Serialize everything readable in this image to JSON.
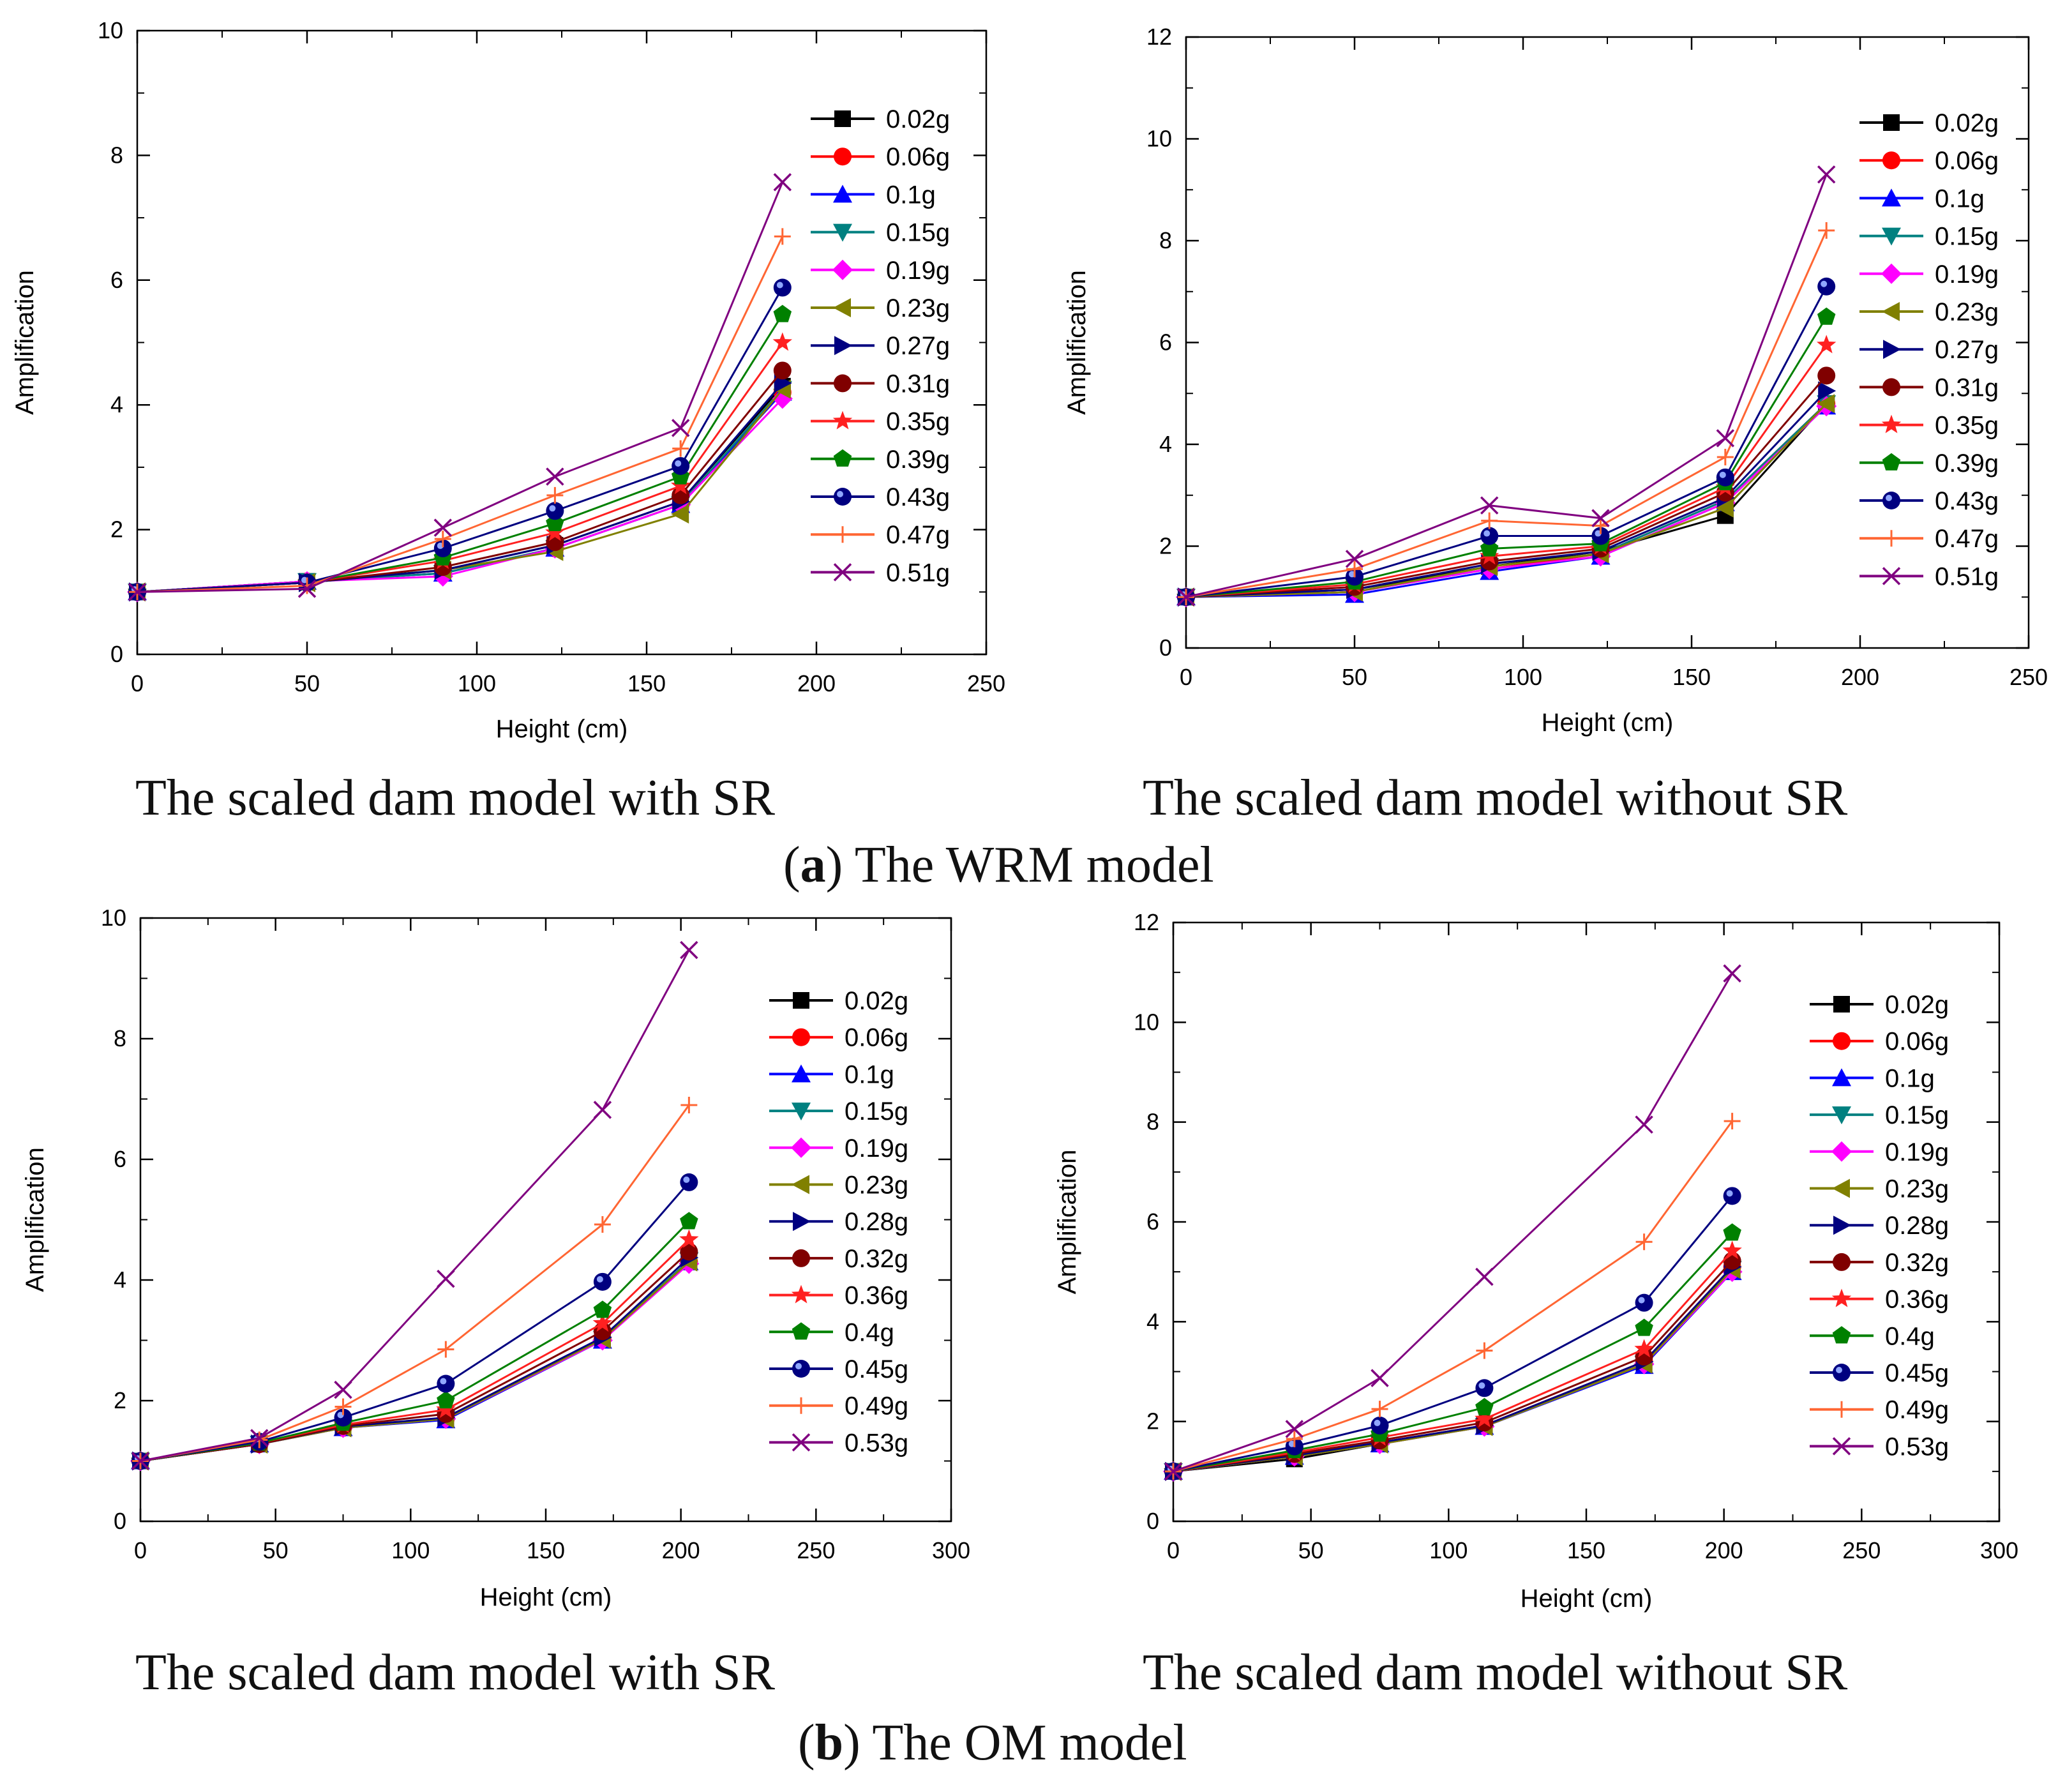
{
  "groups": [
    {
      "letter": "a",
      "open": "(",
      "close": ")",
      "text": " The WRM model"
    },
    {
      "letter": "b",
      "open": "(",
      "close": ")",
      "text": " The OM model"
    }
  ],
  "captions": {
    "a_left": "The scaled dam model with SR",
    "a_right": "The scaled dam model without SR",
    "b_left": "The scaled dam model with SR",
    "b_right": "The scaled dam model without SR"
  },
  "series_colors": [
    "#000000",
    "#ff0000",
    "#0000ff",
    "#008080",
    "#ff00ff",
    "#808000",
    "#000080",
    "#800000",
    "#ff2020",
    "#008000",
    "#000080",
    "#ff6633",
    "#800080"
  ],
  "series_markers": [
    "square",
    "circle",
    "triangle-up",
    "triangle-down",
    "diamond",
    "triangle-left",
    "triangle-right",
    "circle",
    "star",
    "pentagon",
    "circle-bicolor",
    "plus",
    "cross"
  ],
  "chart_data": [
    {
      "id": "a_left",
      "type": "line",
      "title": "",
      "xlabel": "Height (cm)",
      "ylabel": "Amplification",
      "xlim": [
        0,
        250
      ],
      "ylim": [
        0,
        10
      ],
      "xticks": [
        0,
        50,
        100,
        150,
        200,
        250
      ],
      "yticks": [
        0,
        2,
        4,
        6,
        8,
        10
      ],
      "legend_position": "right",
      "x": [
        0,
        50,
        90,
        123,
        160,
        190
      ],
      "series": [
        {
          "name": "0.02g",
          "values": [
            1.0,
            1.17,
            1.35,
            1.75,
            2.45,
            4.3
          ]
        },
        {
          "name": "0.06g",
          "values": [
            1.0,
            1.17,
            1.3,
            1.7,
            2.4,
            4.2
          ]
        },
        {
          "name": "0.1g",
          "values": [
            1.0,
            1.17,
            1.3,
            1.7,
            2.4,
            4.2
          ]
        },
        {
          "name": "0.15g",
          "values": [
            1.0,
            1.17,
            1.3,
            1.7,
            2.4,
            4.25
          ]
        },
        {
          "name": "0.19g",
          "values": [
            1.0,
            1.17,
            1.25,
            1.7,
            2.4,
            4.1
          ]
        },
        {
          "name": "0.23g",
          "values": [
            1.0,
            1.15,
            1.35,
            1.65,
            2.25,
            4.25
          ]
        },
        {
          "name": "0.27g",
          "values": [
            1.0,
            1.15,
            1.35,
            1.75,
            2.45,
            4.35
          ]
        },
        {
          "name": "0.31g",
          "values": [
            1.0,
            1.15,
            1.4,
            1.8,
            2.55,
            4.55
          ]
        },
        {
          "name": "0.35g",
          "values": [
            1.0,
            1.15,
            1.5,
            1.95,
            2.7,
            5.0
          ]
        },
        {
          "name": "0.39g",
          "values": [
            1.0,
            1.15,
            1.55,
            2.1,
            2.85,
            5.45
          ]
        },
        {
          "name": "0.43g",
          "values": [
            1.0,
            1.15,
            1.7,
            2.3,
            3.02,
            5.88
          ]
        },
        {
          "name": "0.47g",
          "values": [
            1.0,
            1.1,
            1.85,
            2.55,
            3.3,
            6.7
          ]
        },
        {
          "name": "0.51g",
          "values": [
            1.0,
            1.05,
            2.03,
            2.85,
            3.63,
            7.57
          ]
        }
      ]
    },
    {
      "id": "a_right",
      "type": "line",
      "title": "",
      "xlabel": "Height (cm)",
      "ylabel": "Amplification",
      "xlim": [
        0,
        250
      ],
      "ylim": [
        0,
        12
      ],
      "xticks": [
        0,
        50,
        100,
        150,
        200,
        250
      ],
      "yticks": [
        0,
        2,
        4,
        6,
        8,
        10,
        12
      ],
      "legend_position": "right",
      "x": [
        0,
        50,
        90,
        123,
        160,
        190
      ],
      "series": [
        {
          "name": "0.02g",
          "values": [
            1.0,
            1.15,
            1.6,
            1.9,
            2.6,
            4.8
          ]
        },
        {
          "name": "0.06g",
          "values": [
            1.0,
            1.1,
            1.55,
            1.85,
            2.9,
            4.8
          ]
        },
        {
          "name": "0.1g",
          "values": [
            1.0,
            1.05,
            1.5,
            1.8,
            2.85,
            4.75
          ]
        },
        {
          "name": "0.15g",
          "values": [
            1.0,
            1.1,
            1.6,
            1.85,
            2.9,
            4.8
          ]
        },
        {
          "name": "0.19g",
          "values": [
            1.0,
            1.1,
            1.55,
            1.8,
            2.85,
            4.75
          ]
        },
        {
          "name": "0.23g",
          "values": [
            1.0,
            1.1,
            1.6,
            1.85,
            2.75,
            4.8
          ]
        },
        {
          "name": "0.27g",
          "values": [
            1.0,
            1.15,
            1.65,
            1.9,
            2.95,
            5.05
          ]
        },
        {
          "name": "0.31g",
          "values": [
            1.0,
            1.2,
            1.7,
            1.95,
            3.05,
            5.35
          ]
        },
        {
          "name": "0.35g",
          "values": [
            1.0,
            1.25,
            1.8,
            2.0,
            3.15,
            5.95
          ]
        },
        {
          "name": "0.39g",
          "values": [
            1.0,
            1.3,
            1.95,
            2.05,
            3.25,
            6.5
          ]
        },
        {
          "name": "0.43g",
          "values": [
            1.0,
            1.4,
            2.2,
            2.2,
            3.35,
            7.1
          ]
        },
        {
          "name": "0.47g",
          "values": [
            1.0,
            1.55,
            2.5,
            2.4,
            3.75,
            8.2
          ]
        },
        {
          "name": "0.51g",
          "values": [
            1.0,
            1.75,
            2.8,
            2.55,
            4.12,
            9.3
          ]
        }
      ]
    },
    {
      "id": "b_left",
      "type": "line",
      "title": "",
      "xlabel": "Height (cm)",
      "ylabel": "Amplification",
      "xlim": [
        0,
        300
      ],
      "ylim": [
        0,
        10
      ],
      "xticks": [
        0,
        50,
        100,
        150,
        200,
        250,
        300
      ],
      "yticks": [
        0,
        2,
        4,
        6,
        8,
        10
      ],
      "legend_position": "right",
      "x": [
        0,
        44,
        75,
        113,
        171,
        203
      ],
      "series": [
        {
          "name": "0.02g",
          "values": [
            1.0,
            1.28,
            1.55,
            1.7,
            3.0,
            4.3
          ]
        },
        {
          "name": "0.06g",
          "values": [
            1.0,
            1.28,
            1.55,
            1.7,
            3.02,
            4.3
          ]
        },
        {
          "name": "0.1g",
          "values": [
            1.0,
            1.28,
            1.55,
            1.68,
            3.0,
            4.3
          ]
        },
        {
          "name": "0.15g",
          "values": [
            1.0,
            1.28,
            1.55,
            1.7,
            3.02,
            4.32
          ]
        },
        {
          "name": "0.19g",
          "values": [
            1.0,
            1.28,
            1.55,
            1.7,
            3.0,
            4.27
          ]
        },
        {
          "name": "0.23g",
          "values": [
            1.0,
            1.28,
            1.55,
            1.7,
            3.02,
            4.3
          ]
        },
        {
          "name": "0.28g",
          "values": [
            1.0,
            1.28,
            1.57,
            1.72,
            3.05,
            4.37
          ]
        },
        {
          "name": "0.32g",
          "values": [
            1.0,
            1.28,
            1.58,
            1.78,
            3.15,
            4.47
          ]
        },
        {
          "name": "0.36g",
          "values": [
            1.0,
            1.3,
            1.6,
            1.85,
            3.28,
            4.67
          ]
        },
        {
          "name": "0.4g",
          "values": [
            1.0,
            1.3,
            1.63,
            2.0,
            3.5,
            4.97
          ]
        },
        {
          "name": "0.45g",
          "values": [
            1.0,
            1.32,
            1.72,
            2.28,
            3.97,
            5.62
          ]
        },
        {
          "name": "0.49g",
          "values": [
            1.0,
            1.35,
            1.9,
            2.85,
            4.92,
            6.9
          ]
        },
        {
          "name": "0.53g",
          "values": [
            1.0,
            1.38,
            2.18,
            4.02,
            6.82,
            9.47
          ]
        }
      ]
    },
    {
      "id": "b_right",
      "type": "line",
      "title": "",
      "xlabel": "Height (cm)",
      "ylabel": "Amplification",
      "xlim": [
        0,
        300
      ],
      "ylim": [
        0,
        12
      ],
      "xticks": [
        0,
        50,
        100,
        150,
        200,
        250,
        300
      ],
      "yticks": [
        0,
        2,
        4,
        6,
        8,
        10,
        12
      ],
      "legend_position": "right",
      "x": [
        0,
        44,
        75,
        113,
        171,
        203
      ],
      "series": [
        {
          "name": "0.02g",
          "values": [
            1.0,
            1.25,
            1.55,
            1.9,
            3.15,
            5.05
          ]
        },
        {
          "name": "0.06g",
          "values": [
            1.0,
            1.3,
            1.58,
            1.92,
            3.2,
            5.1
          ]
        },
        {
          "name": "0.1g",
          "values": [
            1.0,
            1.3,
            1.55,
            1.9,
            3.12,
            5.0
          ]
        },
        {
          "name": "0.15g",
          "values": [
            1.0,
            1.3,
            1.55,
            1.9,
            3.15,
            5.05
          ]
        },
        {
          "name": "0.19g",
          "values": [
            1.0,
            1.3,
            1.55,
            1.9,
            3.15,
            5.0
          ]
        },
        {
          "name": "0.23g",
          "values": [
            1.0,
            1.3,
            1.55,
            1.9,
            3.15,
            5.05
          ]
        },
        {
          "name": "0.28g",
          "values": [
            1.0,
            1.32,
            1.58,
            1.92,
            3.2,
            5.1
          ]
        },
        {
          "name": "0.32g",
          "values": [
            1.0,
            1.35,
            1.62,
            1.98,
            3.3,
            5.22
          ]
        },
        {
          "name": "0.36g",
          "values": [
            1.0,
            1.38,
            1.68,
            2.05,
            3.45,
            5.42
          ]
        },
        {
          "name": "0.4g",
          "values": [
            1.0,
            1.42,
            1.75,
            2.28,
            3.87,
            5.78
          ]
        },
        {
          "name": "0.45g",
          "values": [
            1.0,
            1.5,
            1.92,
            2.67,
            4.38,
            6.52
          ]
        },
        {
          "name": "0.49g",
          "values": [
            1.0,
            1.65,
            2.25,
            3.42,
            5.6,
            8.02
          ]
        },
        {
          "name": "0.53g",
          "values": [
            1.0,
            1.85,
            2.87,
            4.9,
            7.95,
            10.98
          ]
        }
      ]
    }
  ]
}
